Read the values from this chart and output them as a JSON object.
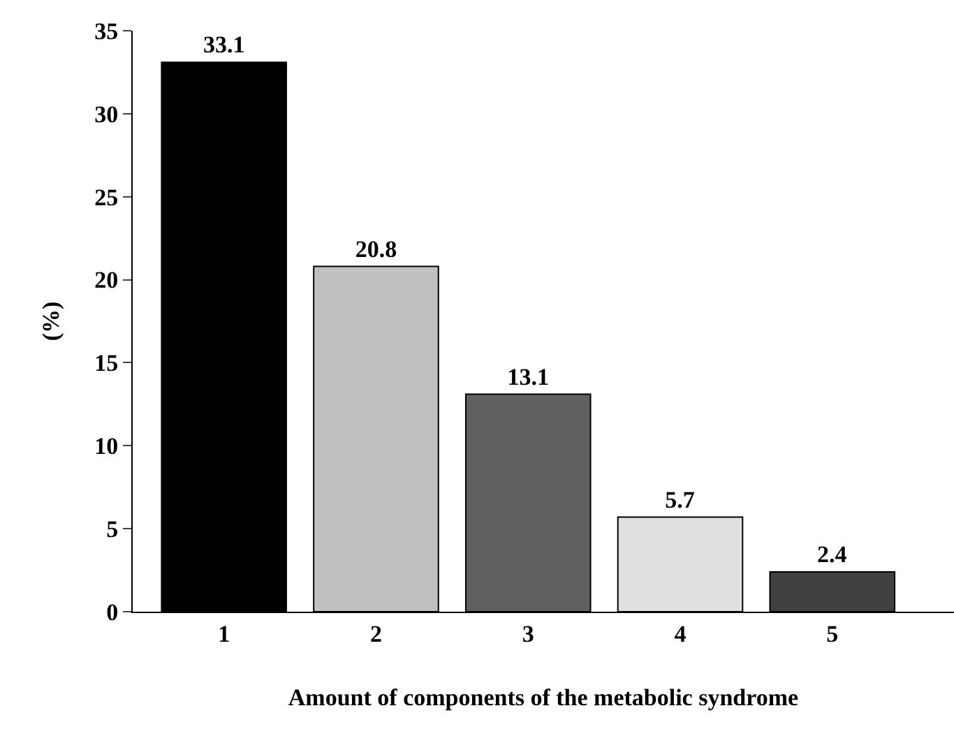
{
  "chart_data": {
    "type": "bar",
    "xlabel": "Amount of components of the metabolic syndrome",
    "ylabel": "(%)",
    "categories": [
      "1",
      "2",
      "3",
      "4",
      "5"
    ],
    "values": [
      33.1,
      20.8,
      13.1,
      5.7,
      2.4
    ],
    "colors": [
      "#000000",
      "#c0c0c0",
      "#606060",
      "#e0e0e0",
      "#404040"
    ],
    "ylim": [
      0,
      35
    ],
    "yticks": [
      0,
      5,
      10,
      15,
      20,
      25,
      30,
      35
    ],
    "data_labels": true,
    "grid": false,
    "legend": false
  }
}
